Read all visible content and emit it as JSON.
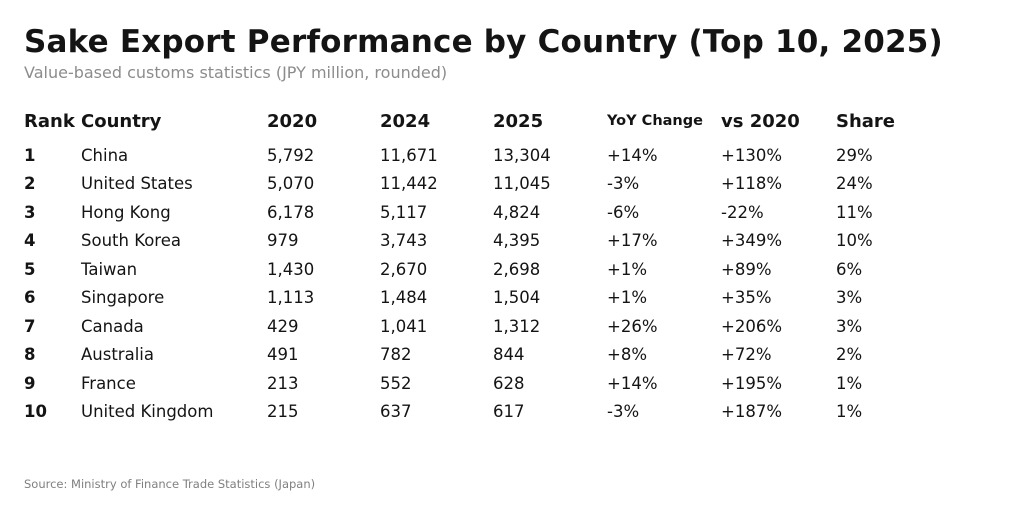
{
  "page": {
    "title": "Sake Export Performance by Country (Top 10, 2025)",
    "subtitle": "Value-based customs statistics (JPY million, rounded)",
    "source": "Source: Ministry of Finance Trade Statistics (Japan)"
  },
  "colors": {
    "background": "#ffffff",
    "text": "#141414",
    "subtitle": "#8c8c8c",
    "source": "#808080"
  },
  "chart_data": {
    "type": "table",
    "title": "Sake Export Performance by Country (Top 10, 2025)",
    "subtitle": "Value-based customs statistics (JPY million, rounded)",
    "source": "Source: Ministry of Finance Trade Statistics (Japan)",
    "unit": "JPY million",
    "columns": [
      "Rank",
      "Country",
      "2020",
      "2024",
      "2025",
      "YoY Change",
      "vs 2020",
      "Share"
    ],
    "rows": [
      [
        "1",
        "China",
        "5,792",
        "11,671",
        "13,304",
        "+14%",
        "+130%",
        "29%"
      ],
      [
        "2",
        "United States",
        "5,070",
        "11,442",
        "11,045",
        "-3%",
        "+118%",
        "24%"
      ],
      [
        "3",
        "Hong Kong",
        "6,178",
        "5,117",
        "4,824",
        "-6%",
        "-22%",
        "11%"
      ],
      [
        "4",
        "South Korea",
        "979",
        "3,743",
        "4,395",
        "+17%",
        "+349%",
        "10%"
      ],
      [
        "5",
        "Taiwan",
        "1,430",
        "2,670",
        "2,698",
        "+1%",
        "+89%",
        "6%"
      ],
      [
        "6",
        "Singapore",
        "1,113",
        "1,484",
        "1,504",
        "+1%",
        "+35%",
        "3%"
      ],
      [
        "7",
        "Canada",
        "429",
        "1,041",
        "1,312",
        "+26%",
        "+206%",
        "3%"
      ],
      [
        "8",
        "Australia",
        "491",
        "782",
        "844",
        "+8%",
        "+72%",
        "2%"
      ],
      [
        "9",
        "France",
        "213",
        "552",
        "628",
        "+14%",
        "+195%",
        "1%"
      ],
      [
        "10",
        "United Kingdom",
        "215",
        "637",
        "617",
        "-3%",
        "+187%",
        "1%"
      ]
    ]
  }
}
